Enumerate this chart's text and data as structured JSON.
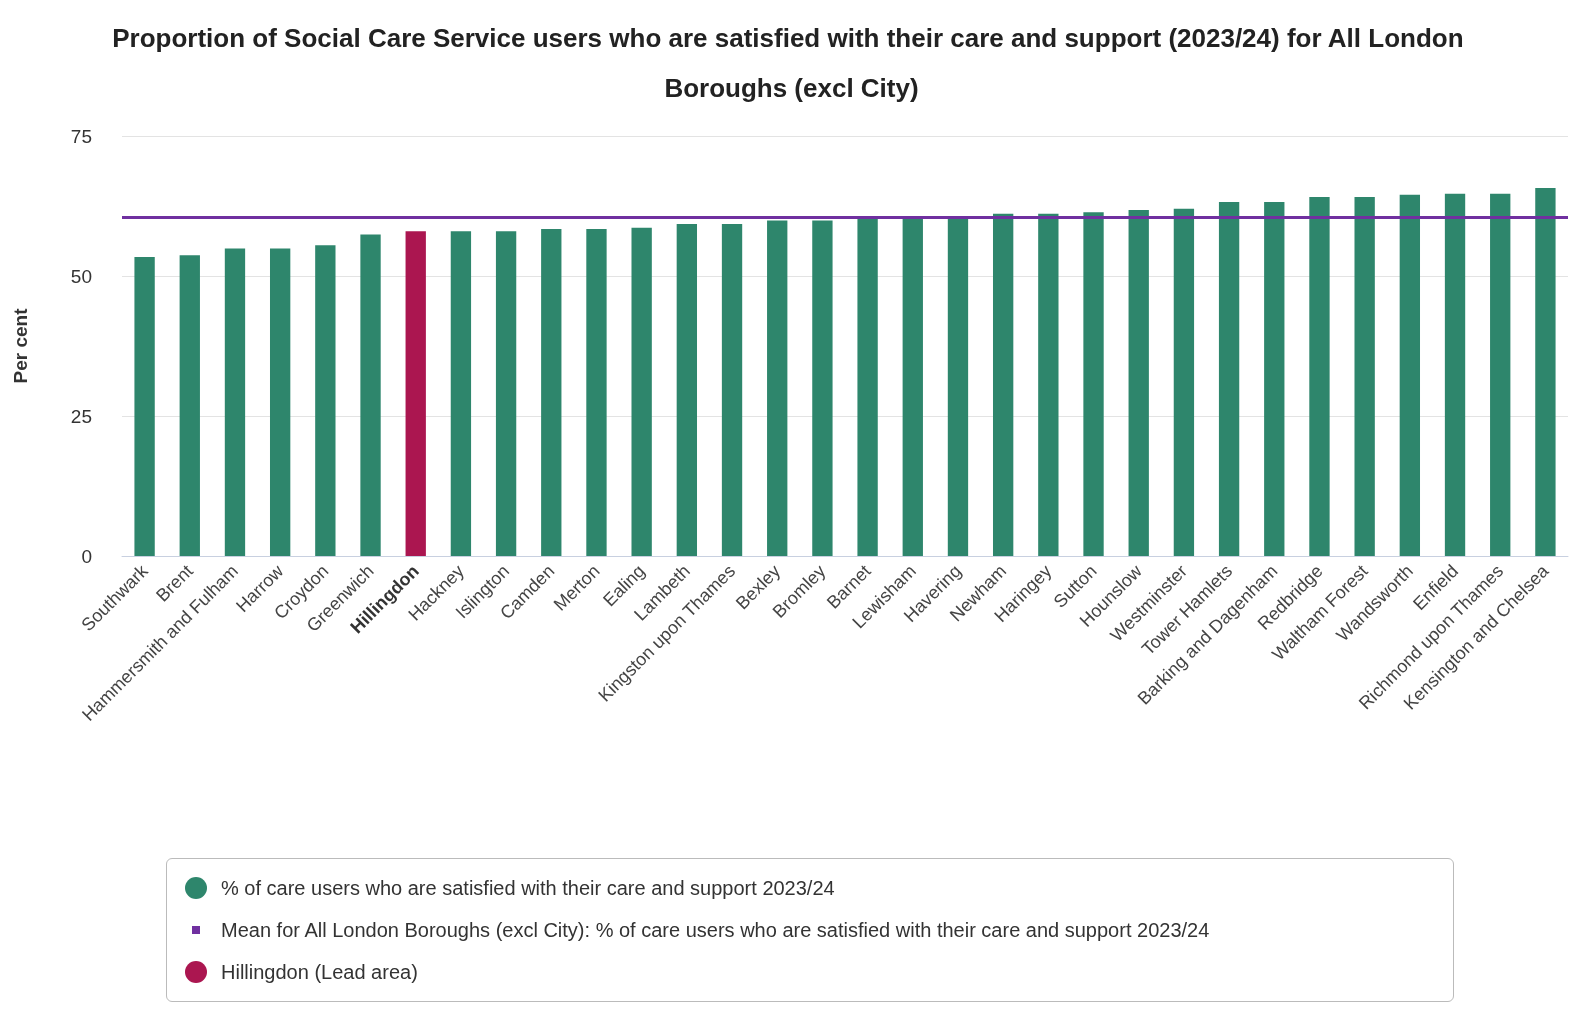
{
  "chart_data": {
    "type": "bar",
    "title": "Proportion of Social Care Service users who are satisfied with their care and support (2023/24) for All London Boroughs (excl City)",
    "ylabel": "Per cent",
    "categories": [
      "Southwark",
      "Brent",
      "Hammersmith and Fulham",
      "Harrow",
      "Croydon",
      "Greenwich",
      "Hillingdon",
      "Hackney",
      "Islington",
      "Camden",
      "Merton",
      "Ealing",
      "Lambeth",
      "Kingston upon Thames",
      "Bexley",
      "Bromley",
      "Barnet",
      "Lewisham",
      "Havering",
      "Newham",
      "Haringey",
      "Sutton",
      "Hounslow",
      "Westminster",
      "Tower Hamlets",
      "Barking and Dagenham",
      "Redbridge",
      "Waltham Forest",
      "Wandsworth",
      "Enfield",
      "Richmond upon Thames",
      "Kensington and Chelsea"
    ],
    "series": [
      {
        "name": "% of care users who are satisfied with their care and support 2023/24",
        "color": "#2e866c",
        "values": [
          53.4,
          53.7,
          54.9,
          54.9,
          55.5,
          57.4,
          null,
          58.0,
          58.0,
          58.4,
          58.4,
          58.6,
          59.3,
          59.3,
          59.9,
          59.9,
          60.4,
          60.4,
          60.4,
          61.1,
          61.1,
          61.4,
          61.8,
          62.0,
          63.2,
          63.2,
          64.1,
          64.1,
          64.5,
          64.7,
          64.7,
          65.7
        ]
      },
      {
        "name": "Hillingdon (Lead area)",
        "color": "#ab1650",
        "values": [
          null,
          null,
          null,
          null,
          null,
          null,
          58.0,
          null,
          null,
          null,
          null,
          null,
          null,
          null,
          null,
          null,
          null,
          null,
          null,
          null,
          null,
          null,
          null,
          null,
          null,
          null,
          null,
          null,
          null,
          null,
          null,
          null
        ]
      }
    ],
    "stacked": true,
    "ref_lines": [
      {
        "axis": "y",
        "value": 60.5,
        "label": "Mean for All London Boroughs (excl City): % of care users who are satisfied with their care and support 2023/24",
        "color": "#7030a0"
      }
    ],
    "ylim": [
      0,
      75
    ],
    "yticks": [
      0,
      25,
      50,
      75
    ],
    "grid": "y",
    "legend": "bottom"
  }
}
